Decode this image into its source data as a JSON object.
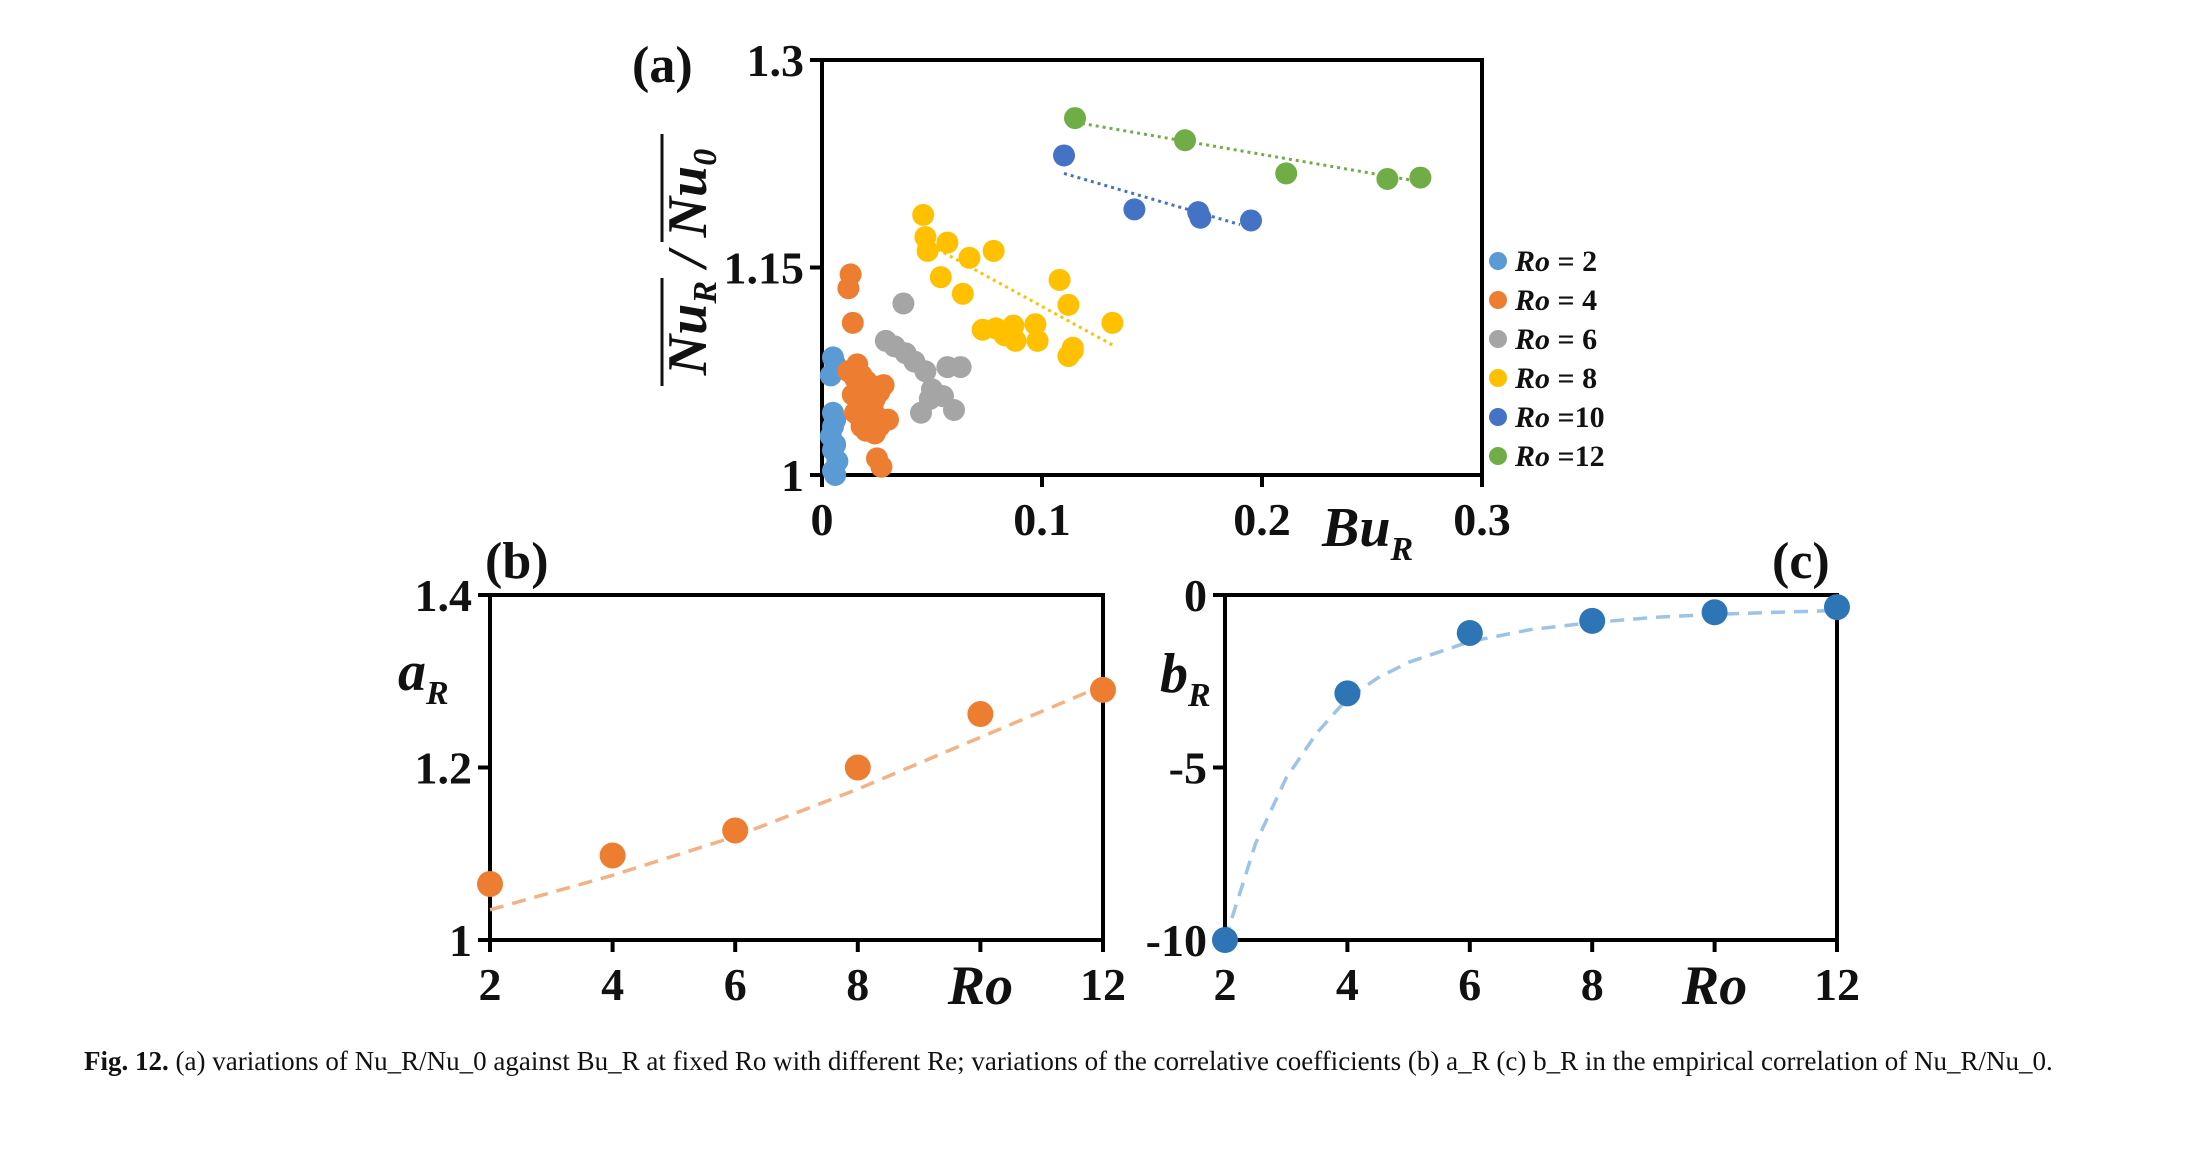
{
  "chart_data": [
    {
      "type": "scatter",
      "panel": "(a)",
      "xlabel": "Bu",
      "xlabel_sub": "R",
      "ylabel": "Nu_R / Nu_0",
      "xlim": [
        0,
        0.3
      ],
      "ylim": [
        1,
        1.3
      ],
      "xticks": [
        "0",
        "0.1",
        "0.2",
        "0.3"
      ],
      "yticks": [
        "1",
        "1.15",
        "1.3"
      ],
      "xtick_values": [
        0,
        0.1,
        0.2,
        0.3
      ],
      "ytick_values": [
        1,
        1.15,
        1.3
      ],
      "legend_placement": "right",
      "series": [
        {
          "name": "Ro = 2",
          "color": "#5b9bd5",
          "x": [
            0.005,
            0.006,
            0.004,
            0.005,
            0.006,
            0.005,
            0.004,
            0.006,
            0.005,
            0.007,
            0.005,
            0.006
          ],
          "y": [
            1.085,
            1.08,
            1.072,
            1.045,
            1.04,
            1.035,
            1.028,
            1.022,
            1.018,
            1.01,
            1.003,
            1.0
          ],
          "trend": []
        },
        {
          "name": "Ro = 4",
          "color": "#ed7d31",
          "x": [
            0.013,
            0.012,
            0.014,
            0.016,
            0.012,
            0.015,
            0.018,
            0.02,
            0.022,
            0.024,
            0.026,
            0.014,
            0.016,
            0.018,
            0.02,
            0.022,
            0.024,
            0.026,
            0.028,
            0.015,
            0.017,
            0.019,
            0.021,
            0.023,
            0.025,
            0.018,
            0.02,
            0.022,
            0.024,
            0.026,
            0.03,
            0.025,
            0.027
          ],
          "y": [
            1.145,
            1.135,
            1.11,
            1.08,
            1.075,
            1.07,
            1.072,
            1.068,
            1.065,
            1.062,
            1.06,
            1.058,
            1.055,
            1.052,
            1.05,
            1.048,
            1.055,
            1.06,
            1.065,
            1.045,
            1.042,
            1.04,
            1.045,
            1.05,
            1.042,
            1.035,
            1.032,
            1.038,
            1.03,
            1.035,
            1.04,
            1.012,
            1.006
          ],
          "trend": []
        },
        {
          "name": "Ro = 6",
          "color": "#a5a5a5",
          "x": [
            0.037,
            0.029,
            0.033,
            0.038,
            0.042,
            0.047,
            0.05,
            0.057,
            0.063,
            0.049,
            0.055,
            0.045,
            0.06
          ],
          "y": [
            1.124,
            1.097,
            1.093,
            1.088,
            1.082,
            1.075,
            1.062,
            1.078,
            1.078,
            1.055,
            1.057,
            1.045,
            1.047
          ],
          "trend": [
            [
              0.03,
              1.097
            ],
            [
              0.06,
              1.07
            ]
          ]
        },
        {
          "name": "Ro = 8",
          "color": "#ffc000",
          "x": [
            0.046,
            0.047,
            0.048,
            0.057,
            0.067,
            0.078,
            0.054,
            0.064,
            0.073,
            0.079,
            0.087,
            0.097,
            0.083,
            0.088,
            0.098,
            0.108,
            0.112,
            0.114,
            0.132,
            0.112,
            0.114
          ],
          "y": [
            1.188,
            1.172,
            1.162,
            1.168,
            1.157,
            1.162,
            1.143,
            1.131,
            1.105,
            1.106,
            1.108,
            1.109,
            1.101,
            1.097,
            1.097,
            1.141,
            1.123,
            1.09,
            1.11,
            1.086,
            1.092
          ],
          "trend": [
            [
              0.047,
              1.168
            ],
            [
              0.132,
              1.094
            ]
          ]
        },
        {
          "name": "Ro =10",
          "color": "#4472c4",
          "x": [
            0.11,
            0.142,
            0.171,
            0.172,
            0.195
          ],
          "y": [
            1.231,
            1.192,
            1.19,
            1.186,
            1.184
          ],
          "trend": [
            [
              0.11,
              1.218
            ],
            [
              0.19,
              1.181
            ]
          ]
        },
        {
          "name": "Ro =12",
          "color": "#70ad47",
          "x": [
            0.115,
            0.165,
            0.211,
            0.257,
            0.272
          ],
          "y": [
            1.258,
            1.242,
            1.218,
            1.214,
            1.215
          ],
          "trend": [
            [
              0.115,
              1.255
            ],
            [
              0.272,
              1.212
            ]
          ]
        }
      ]
    },
    {
      "type": "scatter",
      "panel": "(b)",
      "xlabel": "Ro",
      "ylabel": "a",
      "ylabel_sub": "R",
      "xlim": [
        2,
        12
      ],
      "ylim": [
        1,
        1.4
      ],
      "xticks": [
        "2",
        "4",
        "6",
        "8",
        "Ro",
        "12"
      ],
      "yticks": [
        "1",
        "1.2",
        "1.4"
      ],
      "xtick_values": [
        2,
        4,
        6,
        8,
        10,
        12
      ],
      "ytick_values": [
        1,
        1.2,
        1.4
      ],
      "color": "#ed7d31",
      "x": [
        2,
        4,
        6,
        8,
        10,
        12
      ],
      "y": [
        1.065,
        1.098,
        1.127,
        1.2,
        1.262,
        1.29
      ],
      "fit": [
        [
          2,
          1.035
        ],
        [
          4,
          1.075
        ],
        [
          6,
          1.12
        ],
        [
          8,
          1.175
        ],
        [
          10,
          1.235
        ],
        [
          12,
          1.295
        ]
      ]
    },
    {
      "type": "scatter",
      "panel": "(c)",
      "xlabel": "Ro",
      "ylabel": "b",
      "ylabel_sub": "R",
      "xlim": [
        2,
        12
      ],
      "ylim": [
        -10,
        0
      ],
      "xticks": [
        "2",
        "4",
        "6",
        "8",
        "Ro",
        "12"
      ],
      "yticks": [
        "-10",
        "-5",
        "0"
      ],
      "xtick_values": [
        2,
        4,
        6,
        8,
        10,
        12
      ],
      "ytick_values": [
        -10,
        -5,
        0
      ],
      "color": "#2e75b6",
      "x": [
        2,
        4,
        6,
        8,
        10,
        12
      ],
      "y": [
        -10,
        -2.85,
        -1.1,
        -0.75,
        -0.5,
        -0.35
      ],
      "fit": [
        [
          2,
          -10
        ],
        [
          2.5,
          -7.2
        ],
        [
          3,
          -5.3
        ],
        [
          3.5,
          -4.0
        ],
        [
          4,
          -3.0
        ],
        [
          4.5,
          -2.4
        ],
        [
          5,
          -1.95
        ],
        [
          6,
          -1.35
        ],
        [
          7,
          -1.0
        ],
        [
          8,
          -0.8
        ],
        [
          9,
          -0.65
        ],
        [
          10,
          -0.56
        ],
        [
          11,
          -0.5
        ],
        [
          12,
          -0.45
        ]
      ]
    }
  ],
  "caption": {
    "label": "Fig. 12.",
    "text": "(a) variations of Nu_R/Nu_0 against Bu_R at fixed Ro with different Re; variations of the correlative coefficients (b) a_R (c) b_R in the empirical correlation of Nu_R/Nu_0."
  }
}
